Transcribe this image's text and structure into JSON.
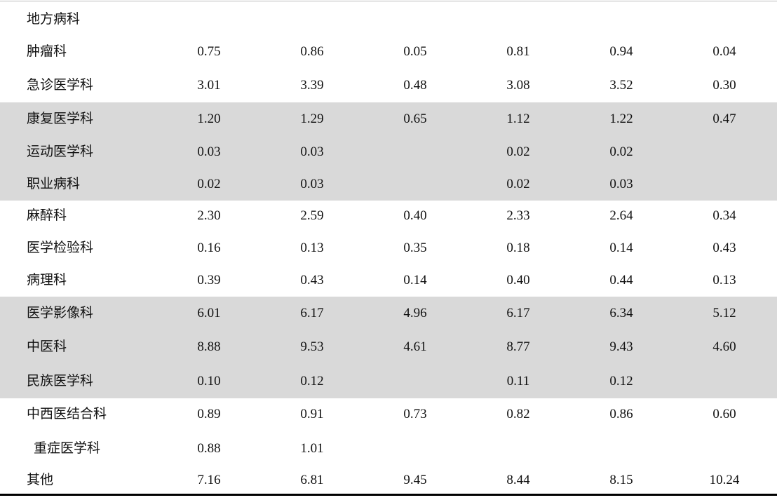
{
  "table": {
    "rows": [
      {
        "label": "地方病科",
        "cells": [
          null,
          null,
          null,
          null,
          null,
          null
        ]
      },
      {
        "label": "肿瘤科",
        "cells": [
          "0.75",
          "0.86",
          "0.05",
          "0.81",
          "0.94",
          "0.04"
        ]
      },
      {
        "label": "急诊医学科",
        "cells": [
          "3.01",
          "3.39",
          "0.48",
          "3.08",
          "3.52",
          "0.30"
        ]
      },
      {
        "label": "康复医学科",
        "cells": [
          "1.20",
          "1.29",
          "0.65",
          "1.12",
          "1.22",
          "0.47"
        ]
      },
      {
        "label": "运动医学科",
        "cells": [
          "0.03",
          "0.03",
          null,
          "0.02",
          "0.02",
          null
        ]
      },
      {
        "label": "职业病科",
        "cells": [
          "0.02",
          "0.03",
          null,
          "0.02",
          "0.03",
          null
        ]
      },
      {
        "label": "麻醉科",
        "cells": [
          "2.30",
          "2.59",
          "0.40",
          "2.33",
          "2.64",
          "0.34"
        ]
      },
      {
        "label": "医学检验科",
        "cells": [
          "0.16",
          "0.13",
          "0.35",
          "0.18",
          "0.14",
          "0.43"
        ]
      },
      {
        "label": "病理科",
        "cells": [
          "0.39",
          "0.43",
          "0.14",
          "0.40",
          "0.44",
          "0.13"
        ]
      },
      {
        "label": "医学影像科",
        "cells": [
          "6.01",
          "6.17",
          "4.96",
          "6.17",
          "6.34",
          "5.12"
        ]
      },
      {
        "label": "中医科",
        "cells": [
          "8.88",
          "9.53",
          "4.61",
          "8.77",
          "9.43",
          "4.60"
        ]
      },
      {
        "label": "民族医学科",
        "cells": [
          "0.10",
          "0.12",
          null,
          "0.11",
          "0.12",
          null
        ]
      },
      {
        "label": "中西医结合科",
        "cells": [
          "0.89",
          "0.91",
          "0.73",
          "0.82",
          "0.86",
          "0.60"
        ]
      },
      {
        "label": "重症医学科",
        "cells": [
          "0.88",
          "1.01",
          null,
          null,
          null,
          null
        ]
      },
      {
        "label": "其他",
        "cells": [
          "7.16",
          "6.81",
          "9.45",
          "8.44",
          "8.15",
          "10.24"
        ]
      }
    ]
  }
}
